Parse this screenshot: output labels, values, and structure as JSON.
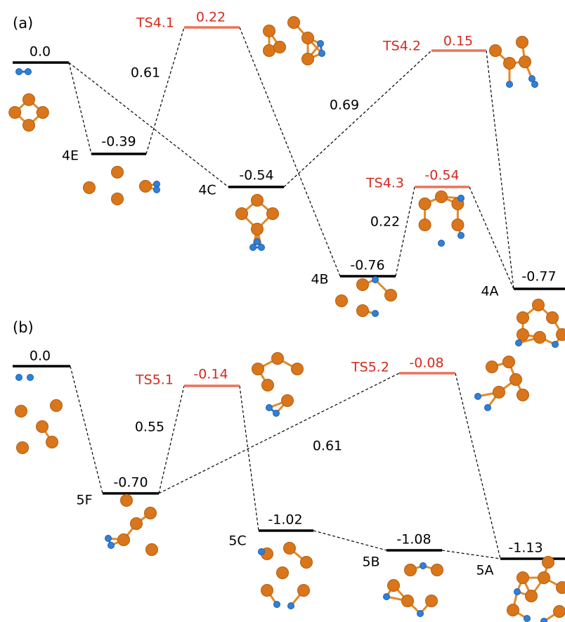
{
  "panels": [
    {
      "label": "(a)",
      "levels": [
        {
          "value": "0.0",
          "color": "#000000"
        },
        {
          "name": "4E",
          "value": "-0.39",
          "color": "#000000"
        },
        {
          "name": "TS4.1",
          "value": "0.22",
          "color": "#e8735a",
          "label_color": "#d42a1e"
        },
        {
          "name": "4C",
          "value": "-0.54",
          "color": "#000000"
        },
        {
          "name": "TS4.2",
          "value": "0.15",
          "color": "#e8735a",
          "label_color": "#d42a1e"
        },
        {
          "name": "TS4.3",
          "value": "-0.54",
          "color": "#e8735a",
          "label_color": "#d42a1e"
        },
        {
          "name": "4B",
          "value": "-0.76",
          "color": "#000000"
        },
        {
          "name": "4A",
          "value": "-0.77",
          "color": "#000000"
        }
      ],
      "barriers": [
        "0.61",
        "0.69",
        "0.22"
      ]
    },
    {
      "label": "(b)",
      "levels": [
        {
          "value": "0.0",
          "color": "#000000"
        },
        {
          "name": "TS5.1",
          "value": "-0.14",
          "color": "#e8735a",
          "label_color": "#d42a1e"
        },
        {
          "name": "TS5.2",
          "value": "-0.08",
          "color": "#e8735a",
          "label_color": "#d42a1e"
        },
        {
          "name": "5F",
          "value": "-0.70",
          "color": "#000000"
        },
        {
          "name": "5C",
          "value": "-1.02",
          "color": "#000000"
        },
        {
          "name": "5B",
          "value": "-1.08",
          "color": "#000000"
        },
        {
          "name": "5A",
          "value": "-1.13",
          "color": "#000000"
        }
      ],
      "barriers": [
        "0.55",
        "0.61"
      ]
    }
  ]
}
